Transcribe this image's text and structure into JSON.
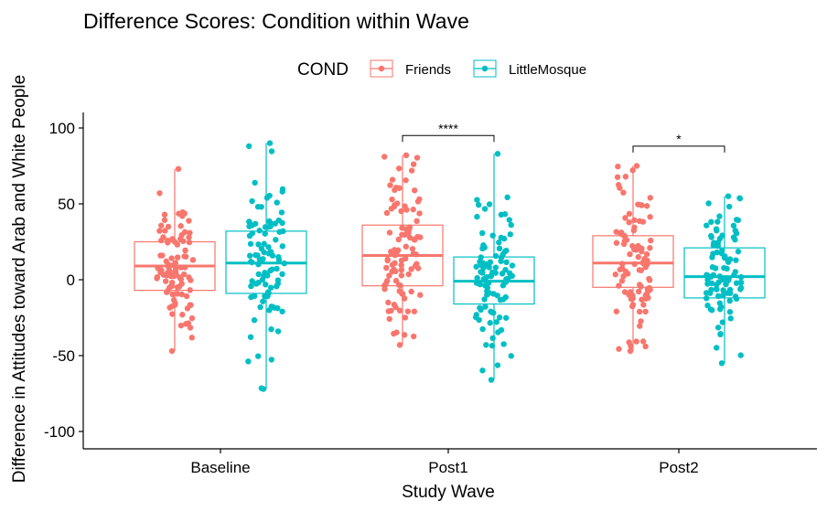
{
  "chart_data": {
    "type": "boxplot",
    "title": "Difference Scores: Condition within Wave",
    "xlabel": "Study Wave",
    "ylabel": "Difference in Attitudes toward Arab and White People",
    "ylim": [
      -110,
      110
    ],
    "yticks": [
      -100,
      -50,
      0,
      50,
      100
    ],
    "yticklabels": [
      "-100",
      "-50",
      "0",
      "50",
      "100"
    ],
    "categories": [
      "Baseline",
      "Post1",
      "Post2"
    ],
    "grid": false,
    "legend": {
      "title": "COND",
      "position": "top"
    },
    "series": [
      {
        "name": "Friends",
        "color": "#F8766D",
        "boxes": [
          {
            "whisker_low": -47,
            "q1": -7,
            "median": 9,
            "q3": 25,
            "whisker_high": 73
          },
          {
            "whisker_low": -43,
            "q1": -4,
            "median": 16,
            "q3": 36,
            "whisker_high": 82
          },
          {
            "whisker_low": -47,
            "q1": -5,
            "median": 11,
            "q3": 29,
            "whisker_high": 75
          }
        ]
      },
      {
        "name": "LittleMosque",
        "color": "#00BFC4",
        "boxes": [
          {
            "whisker_low": -72,
            "q1": -9,
            "median": 11,
            "q3": 32,
            "whisker_high": 90
          },
          {
            "whisker_low": -66,
            "q1": -16,
            "median": -1,
            "q3": 15,
            "whisker_high": 83
          },
          {
            "whisker_low": -55,
            "q1": -12,
            "median": 2,
            "q3": 21,
            "whisker_high": 55
          }
        ]
      }
    ],
    "annotations": [
      {
        "category": "Post1",
        "label": "****",
        "y": 95
      },
      {
        "category": "Post2",
        "label": "*",
        "y": 88
      }
    ]
  }
}
